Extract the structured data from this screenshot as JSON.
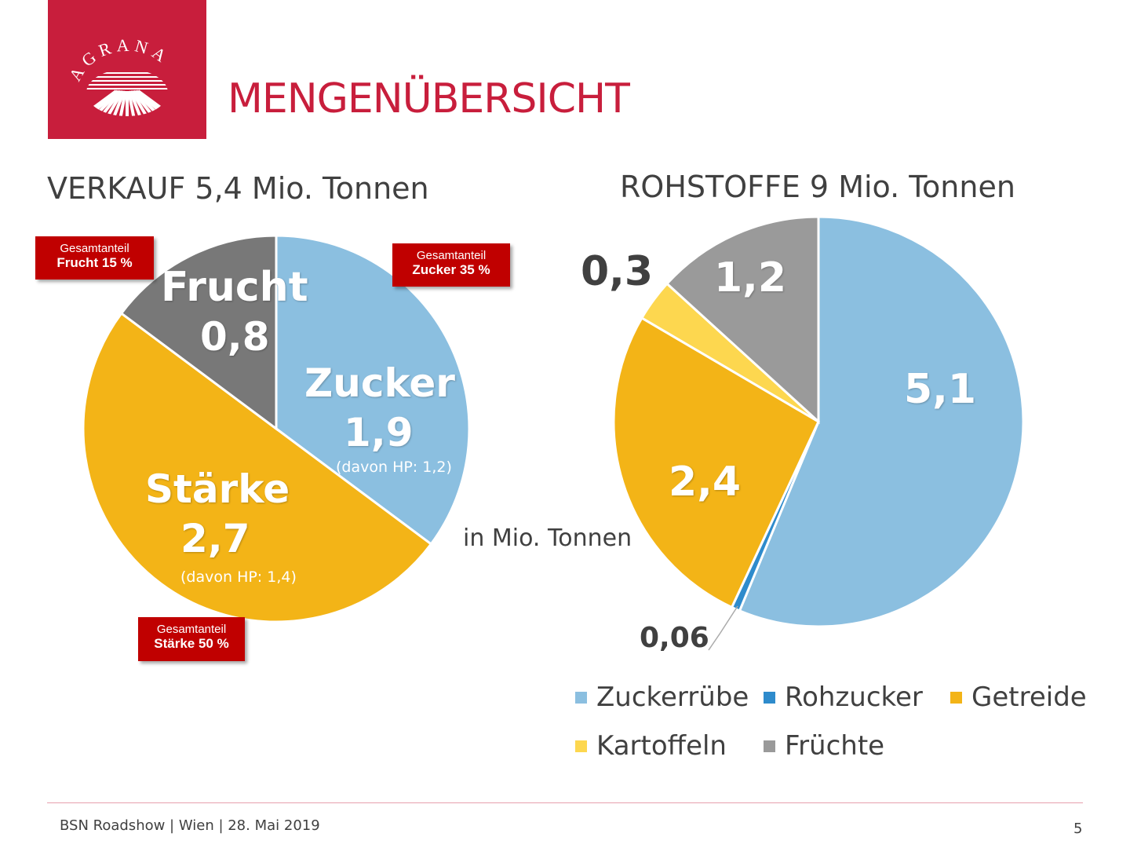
{
  "logo": {
    "text": "AGRANA"
  },
  "title": "MENGENÜBERSICHT",
  "unit_note": "in Mio. Tonnen",
  "footer": "BSN Roadshow | Wien | 28. Mai 2019",
  "page_number": "5",
  "chart_data": [
    {
      "type": "pie",
      "title": "VERKAUF 5,4 Mio. Tonnen",
      "slices": [
        {
          "label": "Zucker",
          "value": 1.9,
          "value_label": "1,9",
          "note": "(davon HP: 1,2)",
          "color": "#8bbfe0"
        },
        {
          "label": "Stärke",
          "value": 2.7,
          "value_label": "2,7",
          "note": "(davon HP: 1,4)",
          "color": "#f3b417"
        },
        {
          "label": "Frucht",
          "value": 0.8,
          "value_label": "0,8",
          "color": "#787878"
        }
      ],
      "badges": [
        {
          "line1": "Gesamtanteil",
          "line2": "Frucht 15 %"
        },
        {
          "line1": "Gesamtanteil",
          "line2": "Zucker 35 %"
        },
        {
          "line1": "Gesamtanteil",
          "line2": "Stärke 50 %"
        }
      ]
    },
    {
      "type": "pie",
      "title": "ROHSTOFFE 9 Mio. Tonnen",
      "slices": [
        {
          "label": "Zuckerrübe",
          "value": 5.1,
          "value_label": "5,1",
          "color": "#8bbfe0"
        },
        {
          "label": "Rohzucker",
          "value": 0.06,
          "value_label": "0,06",
          "color": "#2e8bcc"
        },
        {
          "label": "Getreide",
          "value": 2.4,
          "value_label": "2,4",
          "color": "#f3b417"
        },
        {
          "label": "Kartoffeln",
          "value": 0.3,
          "value_label": "0,3",
          "color": "#fdd74f"
        },
        {
          "label": "Früchte",
          "value": 1.2,
          "value_label": "1,2",
          "color": "#9a9a9a"
        }
      ],
      "legend_position": "bottom"
    }
  ]
}
